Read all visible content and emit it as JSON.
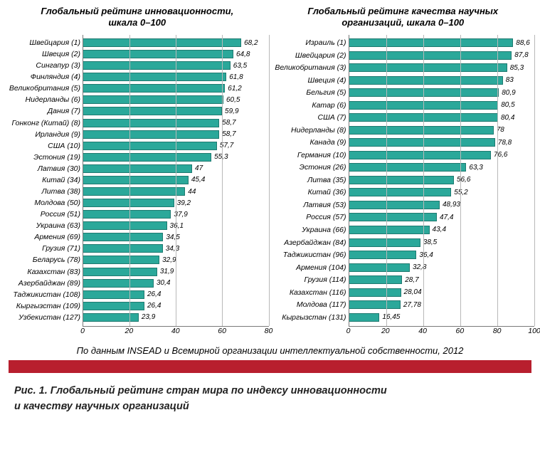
{
  "chart_left": {
    "title_l1": "Глобальный рейтинг инновационности,",
    "title_l2": "шкала 0–100",
    "xmax": 80,
    "xtick_step": 20,
    "xticks": [
      "0",
      "20",
      "40",
      "60",
      "80"
    ],
    "bar_color": "#2ba89a",
    "bar_border": "#1e7a70",
    "grid_color": "#b8b8b8",
    "rows": [
      {
        "label": "Швейцария (1)",
        "value": 68.2,
        "vt": "68,2"
      },
      {
        "label": "Швеция (2)",
        "value": 64.8,
        "vt": "64,8"
      },
      {
        "label": "Сингапур (3)",
        "value": 63.5,
        "vt": "63,5"
      },
      {
        "label": "Финляндия (4)",
        "value": 61.8,
        "vt": "61,8"
      },
      {
        "label": "Великобритания (5)",
        "value": 61.2,
        "vt": "61,2"
      },
      {
        "label": "Нидерланды (6)",
        "value": 60.5,
        "vt": "60,5"
      },
      {
        "label": "Дания (7)",
        "value": 59.9,
        "vt": "59,9"
      },
      {
        "label": "Гонконг (Китай) (8)",
        "value": 58.7,
        "vt": "58,7"
      },
      {
        "label": "Ирландия (9)",
        "value": 58.7,
        "vt": "58,7"
      },
      {
        "label": "США (10)",
        "value": 57.7,
        "vt": "57,7"
      },
      {
        "label": "Эстония (19)",
        "value": 55.3,
        "vt": "55,3"
      },
      {
        "label": "Латвия (30)",
        "value": 47,
        "vt": "47"
      },
      {
        "label": "Китай (34)",
        "value": 45.4,
        "vt": "45,4"
      },
      {
        "label": "Литва (38)",
        "value": 44,
        "vt": "44"
      },
      {
        "label": "Молдова (50)",
        "value": 39.2,
        "vt": "39,2"
      },
      {
        "label": "Россия (51)",
        "value": 37.9,
        "vt": "37,9"
      },
      {
        "label": "Украина (63)",
        "value": 36.1,
        "vt": "36,1"
      },
      {
        "label": "Армения (69)",
        "value": 34.5,
        "vt": "34,5"
      },
      {
        "label": "Грузия (71)",
        "value": 34.3,
        "vt": "34,3"
      },
      {
        "label": "Беларусь (78)",
        "value": 32.9,
        "vt": "32,9"
      },
      {
        "label": "Казахстан (83)",
        "value": 31.9,
        "vt": "31,9"
      },
      {
        "label": "Азербайджан (89)",
        "value": 30.4,
        "vt": "30,4"
      },
      {
        "label": "Таджикистан (108)",
        "value": 26.4,
        "vt": "26,4"
      },
      {
        "label": "Кыргызстан (109)",
        "value": 26.4,
        "vt": "26,4"
      },
      {
        "label": "Узбекистан (127)",
        "value": 23.9,
        "vt": "23,9"
      }
    ]
  },
  "chart_right": {
    "title_l1": "Глобальный рейтинг качества научных",
    "title_l2": "организаций, шкала 0–100",
    "xmax": 100,
    "xtick_step": 20,
    "xticks": [
      "0",
      "20",
      "40",
      "60",
      "80",
      "100"
    ],
    "bar_color": "#2ba89a",
    "bar_border": "#1e7a70",
    "grid_color": "#b8b8b8",
    "rows": [
      {
        "label": "Израиль (1)",
        "value": 88.6,
        "vt": "88,6"
      },
      {
        "label": "Швейцария (2)",
        "value": 87.8,
        "vt": "87,8"
      },
      {
        "label": "Великобритания (3)",
        "value": 85.3,
        "vt": "85,3"
      },
      {
        "label": "Швеция (4)",
        "value": 83,
        "vt": "83"
      },
      {
        "label": "Бельгия (5)",
        "value": 80.9,
        "vt": "80,9"
      },
      {
        "label": "Катар (6)",
        "value": 80.5,
        "vt": "80,5"
      },
      {
        "label": "США (7)",
        "value": 80.4,
        "vt": "80,4"
      },
      {
        "label": "Нидерланды (8)",
        "value": 78,
        "vt": "78"
      },
      {
        "label": "Канада (9)",
        "value": 78.8,
        "vt": "78,8"
      },
      {
        "label": "Германия (10)",
        "value": 76.6,
        "vt": "76,6"
      },
      {
        "label": "Эстония (26)",
        "value": 63.3,
        "vt": "63,3"
      },
      {
        "label": "Литва (35)",
        "value": 56.6,
        "vt": "56,6"
      },
      {
        "label": "Китай (36)",
        "value": 55.2,
        "vt": "55,2"
      },
      {
        "label": "Латвия (53)",
        "value": 48.93,
        "vt": "48,93"
      },
      {
        "label": "Россия (57)",
        "value": 47.4,
        "vt": "47,4"
      },
      {
        "label": "Украина (66)",
        "value": 43.4,
        "vt": "43,4"
      },
      {
        "label": "Азербайджан (84)",
        "value": 38.5,
        "vt": "38,5"
      },
      {
        "label": "Таджикистан (96)",
        "value": 36.4,
        "vt": "36,4"
      },
      {
        "label": "Армения (104)",
        "value": 32.8,
        "vt": "32,8"
      },
      {
        "label": "Грузия (114)",
        "value": 28.7,
        "vt": "28,7"
      },
      {
        "label": "Казахстан (116)",
        "value": 28.04,
        "vt": "28,04"
      },
      {
        "label": "Молдова (117)",
        "value": 27.78,
        "vt": "27,78"
      },
      {
        "label": "Кыргызстан (131)",
        "value": 16.45,
        "vt": "16,45"
      }
    ]
  },
  "source_text": "По данным INSEAD и Всемирной организации интеллектуальной собственности, 2012",
  "caption_l1": "Рис. 1. Глобальный рейтинг стран мира по индексу инновационности",
  "caption_l2": "и качеству научных организаций",
  "red_bar_color": "#b81f2e"
}
